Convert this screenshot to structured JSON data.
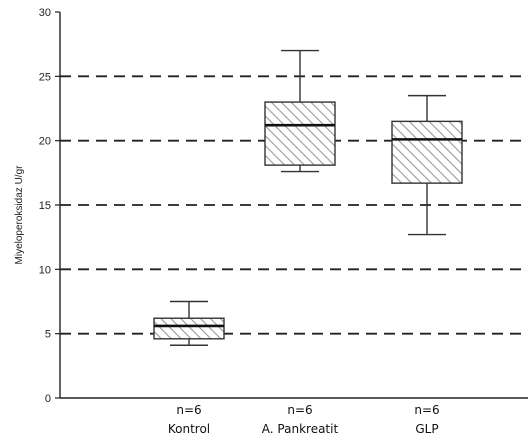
{
  "chart_data": {
    "type": "boxplot",
    "title": "",
    "xlabel": "",
    "ylabel": "Miyeloperoksidaz U/gr",
    "ylim": [
      0,
      30
    ],
    "yticks": [
      0,
      5,
      10,
      15,
      20,
      25,
      30
    ],
    "grid": "horizontal dashed at 5, 10, 15, 20, 25",
    "categories": [
      "Kontrol",
      "A. Pankreatit",
      "GLP"
    ],
    "sample_sizes": [
      "n=6",
      "n=6",
      "n=6"
    ],
    "boxes": [
      {
        "category": "Kontrol",
        "min": 4.1,
        "q1": 4.6,
        "median": 5.6,
        "q3": 6.2,
        "max": 7.5
      },
      {
        "category": "A. Pankreatit",
        "min": 17.6,
        "q1": 18.1,
        "median": 21.2,
        "q3": 23.0,
        "max": 27.0
      },
      {
        "category": "GLP",
        "min": 12.7,
        "q1": 16.7,
        "median": 20.1,
        "q3": 21.5,
        "max": 23.5
      }
    ],
    "colors": {
      "box_stroke": "#333333",
      "hatch": "#9a9a9a",
      "grid": "#222222"
    }
  }
}
